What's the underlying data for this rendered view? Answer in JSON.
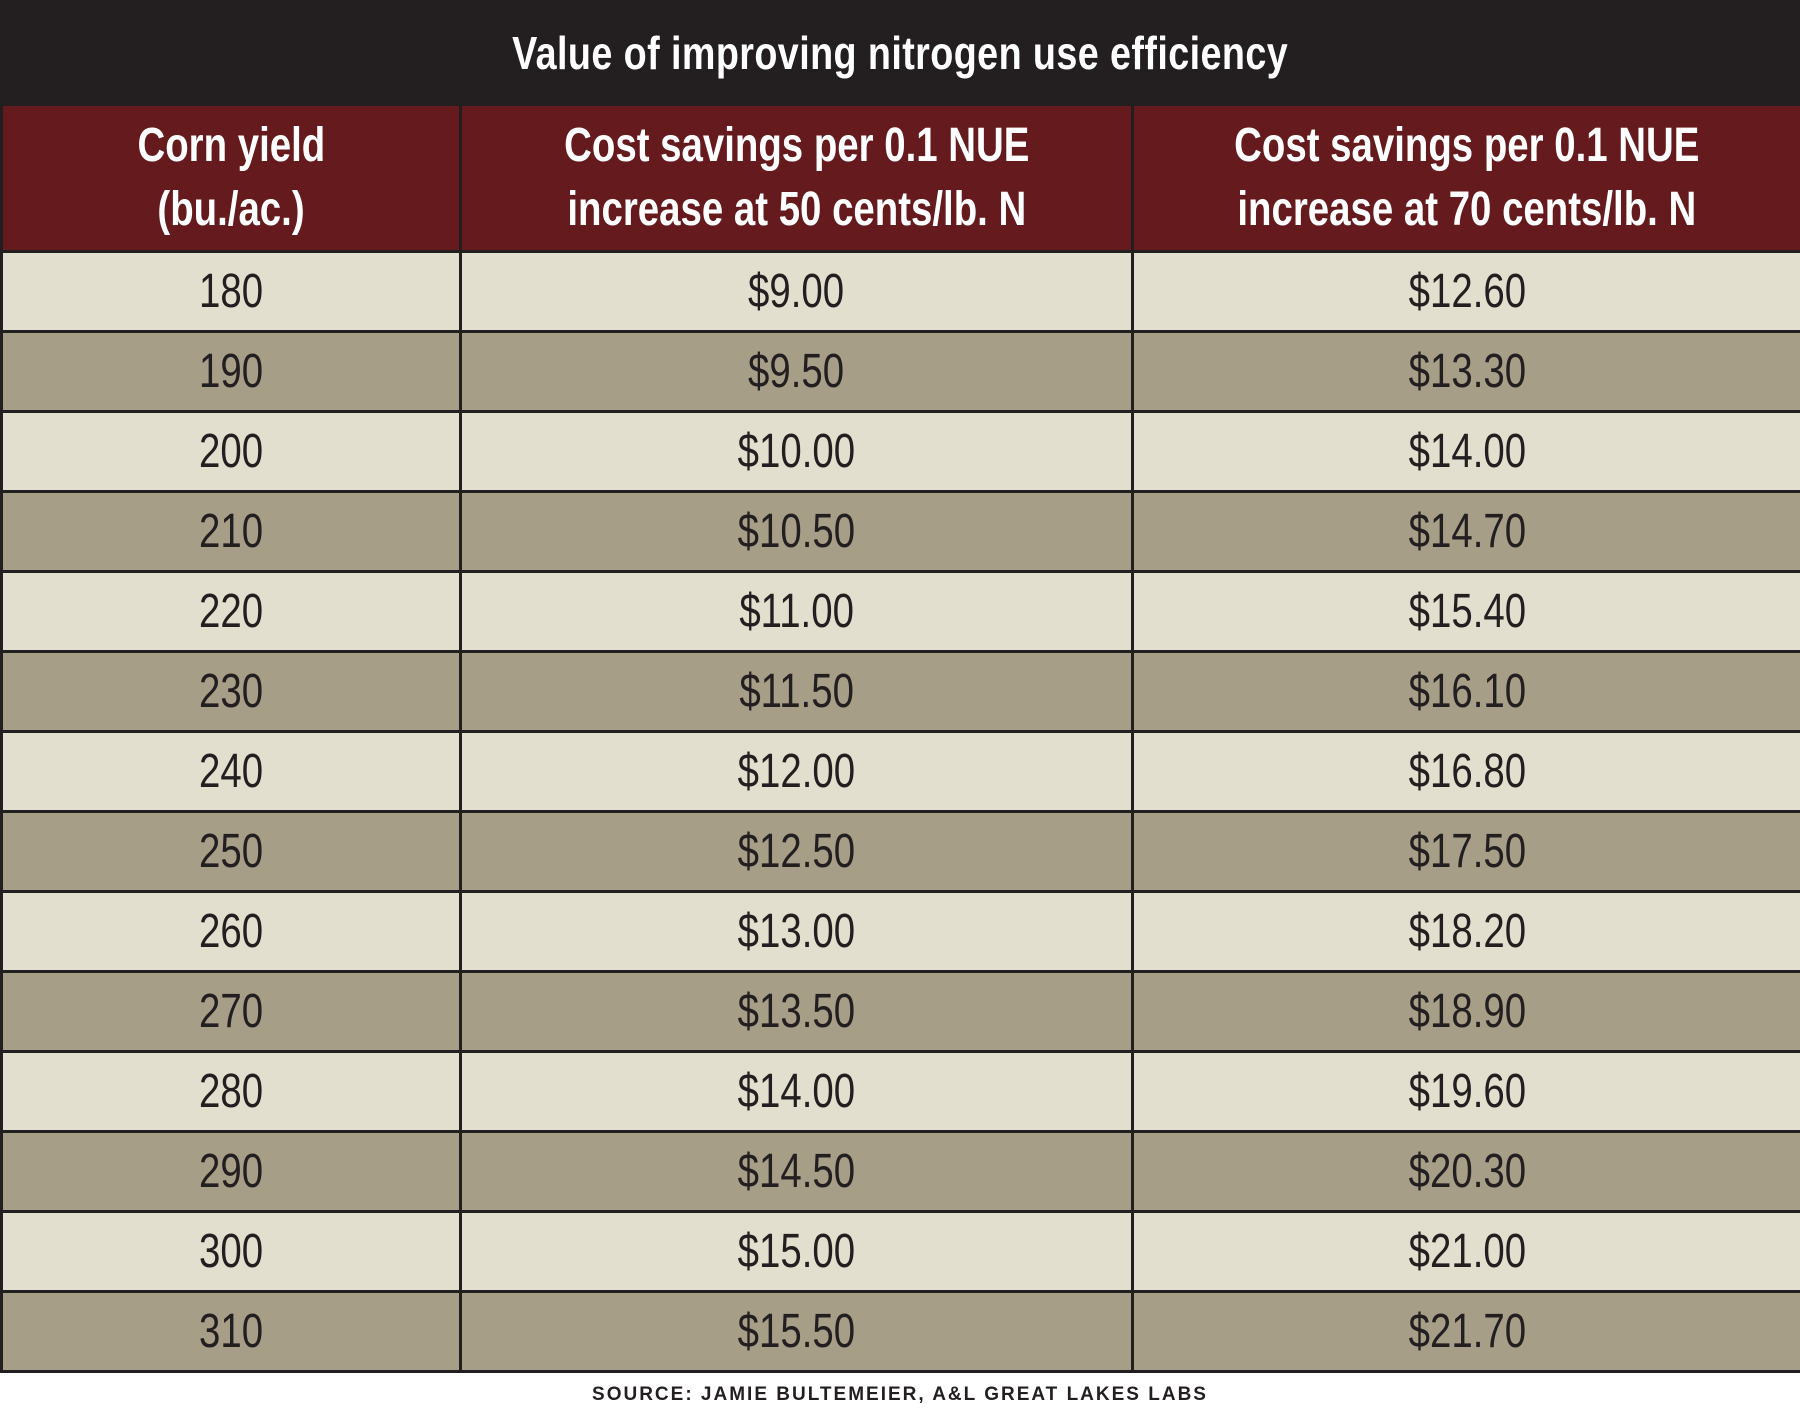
{
  "title": "Value of improving nitrogen use efficiency",
  "columns": [
    {
      "line1": "Corn yield",
      "line2": "(bu./ac.)"
    },
    {
      "line1": "Cost savings per 0.1 NUE",
      "line2": "increase at 50 cents/lb. N"
    },
    {
      "line1": "Cost savings per 0.1 NUE",
      "line2": "increase at 70 cents/lb. N"
    }
  ],
  "rows": [
    [
      "180",
      "$9.00",
      "$12.60"
    ],
    [
      "190",
      "$9.50",
      "$13.30"
    ],
    [
      "200",
      "$10.00",
      "$14.00"
    ],
    [
      "210",
      "$10.50",
      "$14.70"
    ],
    [
      "220",
      "$11.00",
      "$15.40"
    ],
    [
      "230",
      "$11.50",
      "$16.10"
    ],
    [
      "240",
      "$12.00",
      "$16.80"
    ],
    [
      "250",
      "$12.50",
      "$17.50"
    ],
    [
      "260",
      "$13.00",
      "$18.20"
    ],
    [
      "270",
      "$13.50",
      "$18.90"
    ],
    [
      "280",
      "$14.00",
      "$19.60"
    ],
    [
      "290",
      "$14.50",
      "$20.30"
    ],
    [
      "300",
      "$15.00",
      "$21.00"
    ],
    [
      "310",
      "$15.50",
      "$21.70"
    ]
  ],
  "source": "SOURCE: JAMIE BULTEMEIER, A&L GREAT LAKES LABS",
  "colors": {
    "title_bg": "#231f20",
    "header_bg": "#651a1e",
    "row_light": "#e3dfcf",
    "row_dark": "#a69e87"
  },
  "chart_data": {
    "type": "table",
    "title": "Value of improving nitrogen use efficiency",
    "headers": [
      "Corn yield (bu./ac.)",
      "Cost savings per 0.1 NUE increase at 50 cents/lb. N",
      "Cost savings per 0.1 NUE increase at 70 cents/lb. N"
    ],
    "x": [
      180,
      190,
      200,
      210,
      220,
      230,
      240,
      250,
      260,
      270,
      280,
      290,
      300,
      310
    ],
    "series": [
      {
        "name": "Cost savings per 0.1 NUE increase at 50 cents/lb. N",
        "values": [
          9.0,
          9.5,
          10.0,
          10.5,
          11.0,
          11.5,
          12.0,
          12.5,
          13.0,
          13.5,
          14.0,
          14.5,
          15.0,
          15.5
        ]
      },
      {
        "name": "Cost savings per 0.1 NUE increase at 70 cents/lb. N",
        "values": [
          12.6,
          13.3,
          14.0,
          14.7,
          15.4,
          16.1,
          16.8,
          17.5,
          18.2,
          18.9,
          19.6,
          20.3,
          21.0,
          21.7
        ]
      }
    ]
  }
}
